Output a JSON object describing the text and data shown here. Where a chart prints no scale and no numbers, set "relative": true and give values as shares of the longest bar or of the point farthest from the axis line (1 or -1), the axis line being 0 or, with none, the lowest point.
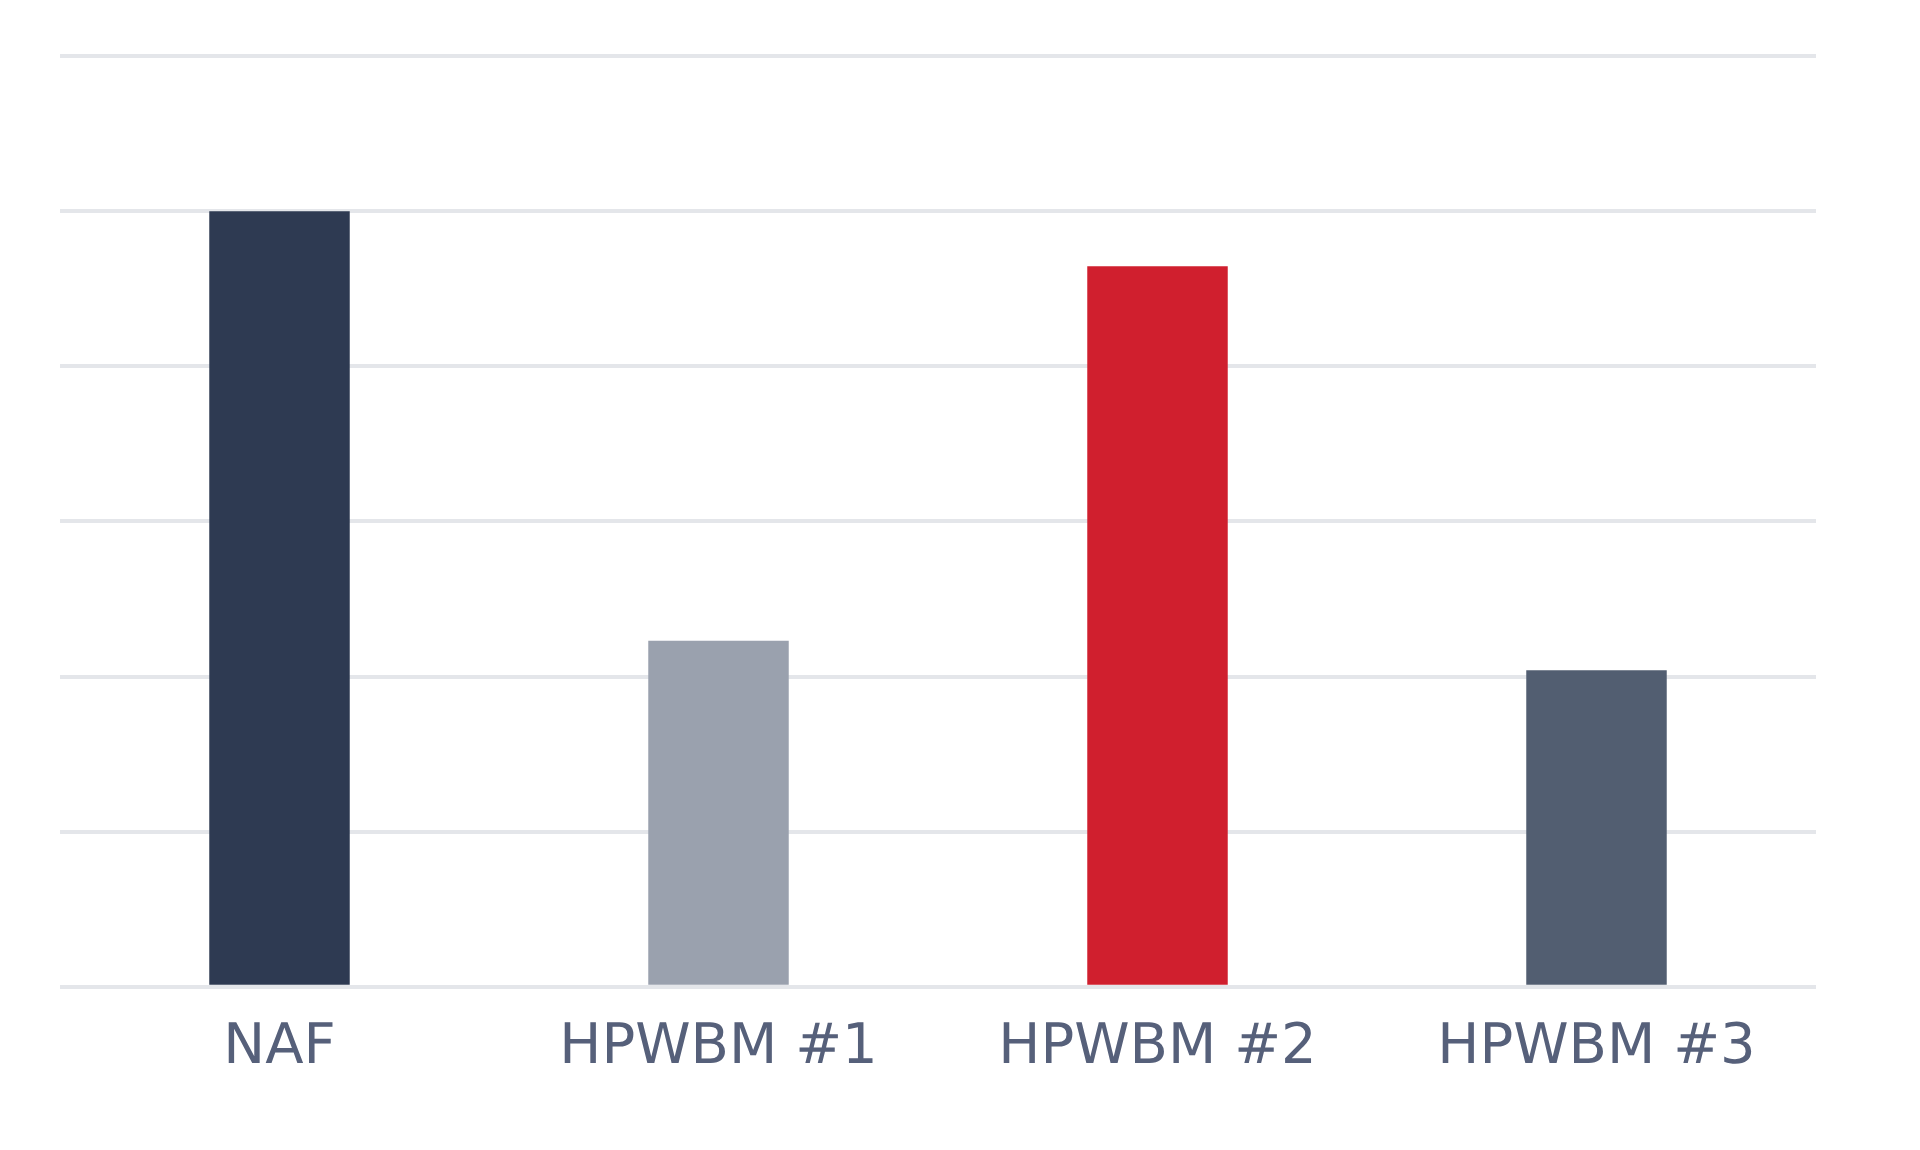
{
  "chart_data": {
    "type": "bar",
    "categories": [
      "NAF",
      "HPWBM #1",
      "HPWBM #2",
      "HPWBM #3"
    ],
    "values": [
      1,
      0.446,
      0.929,
      0.408
    ],
    "colors": [
      "#2e3a52",
      "#9aa1ae",
      "#d01f2e",
      "#525e71"
    ],
    "relative": true,
    "grid": "y",
    "legend": false
  }
}
